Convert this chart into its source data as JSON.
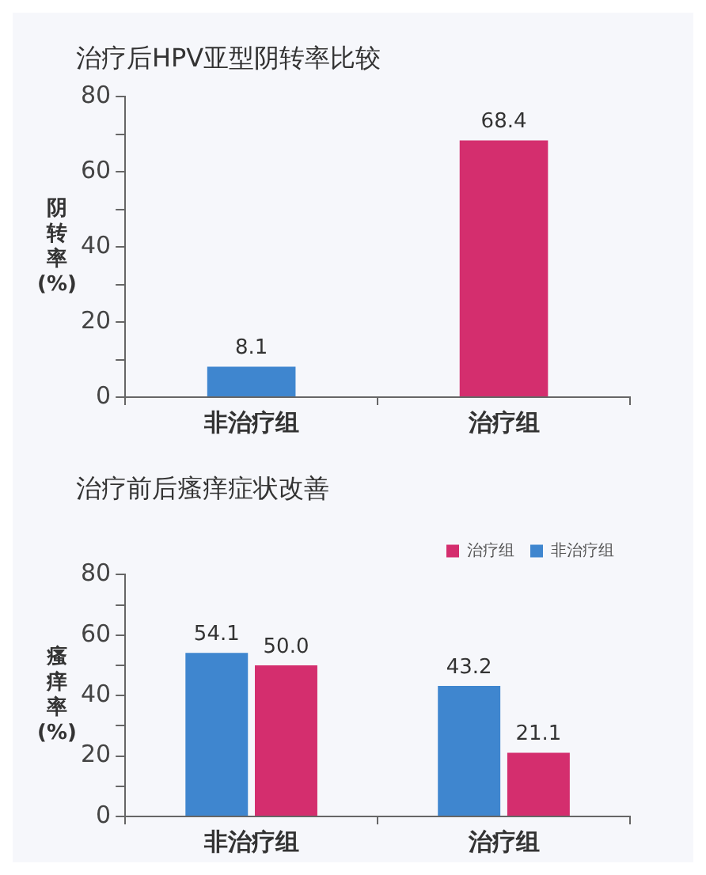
{
  "chart_data": [
    {
      "type": "bar",
      "title": "治疗后HPV亚型阴转率比较",
      "ylabel": "阴转率(%)",
      "categories": [
        "非治疗组",
        "治疗组"
      ],
      "series": [
        {
          "values": [
            8.1,
            68.4
          ],
          "colors": [
            "#3f86cf",
            "#d42e6e"
          ]
        }
      ],
      "ylim": [
        0,
        80
      ],
      "yticks": [
        0,
        {
          "value": 10,
          "label": null
        },
        20,
        {
          "value": 30,
          "label": null
        },
        40,
        {
          "value": 50,
          "label": null
        },
        60,
        {
          "value": 70,
          "label": null
        },
        80
      ],
      "grid": false,
      "legend": false,
      "data_labels": true
    },
    {
      "type": "bar",
      "title": "治疗前后瘙痒症状改善",
      "ylabel": "瘙痒率(%)",
      "categories": [
        "非治疗组",
        "治疗组"
      ],
      "series": [
        {
          "name": "非治疗组",
          "color": "#3f86cf",
          "values": [
            54.1,
            43.2
          ]
        },
        {
          "name": "治疗组",
          "color": "#d42e6e",
          "values": [
            50.0,
            21.1
          ]
        }
      ],
      "value_labels": [
        [
          "54.1",
          "43.2"
        ],
        [
          "50.0",
          "21.1"
        ]
      ],
      "ylim": [
        0,
        80
      ],
      "yticks": [
        0,
        {
          "value": 10,
          "label": null
        },
        20,
        {
          "value": 30,
          "label": null
        },
        40,
        {
          "value": 50,
          "label": null
        },
        60,
        {
          "value": 70,
          "label": null
        },
        80
      ],
      "grid": false,
      "legend": "top right"
    }
  ]
}
